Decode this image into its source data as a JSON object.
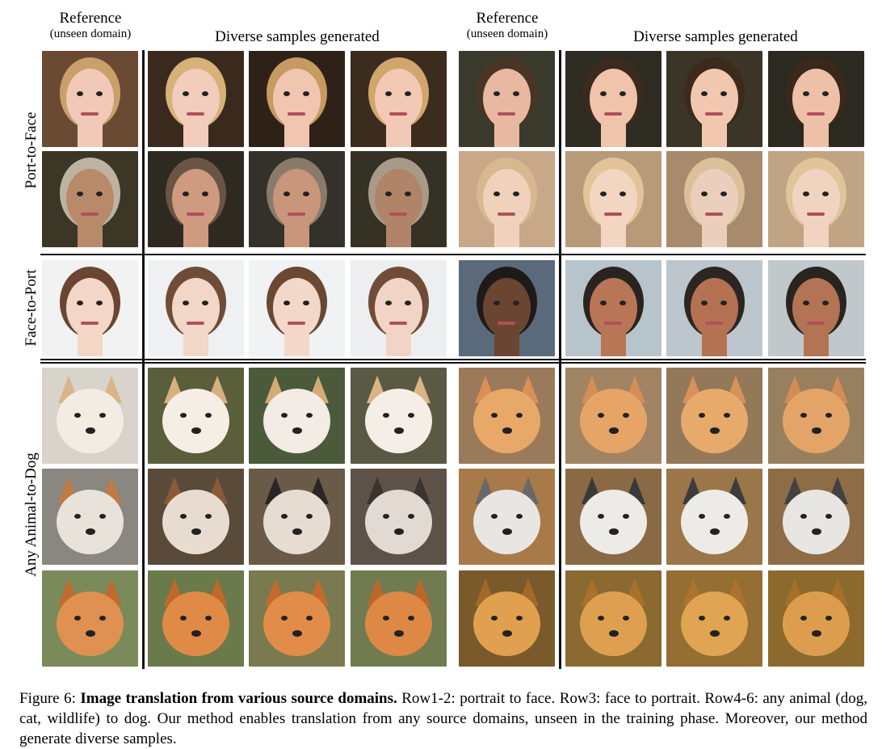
{
  "headers": [
    {
      "title": "Reference",
      "subtitle": "(unseen domain)"
    },
    {
      "title": "Diverse samples generated"
    },
    {
      "title": "Reference",
      "subtitle": "(unseen domain)"
    },
    {
      "title": "Diverse samples generated"
    }
  ],
  "row_groups": [
    "Port-to-Face",
    "Face-to-Port",
    "Any Animal-to-Dog"
  ],
  "rows": [
    {
      "kind": "face",
      "tones": [
        {
          "bg": "#6a4a32",
          "skin": "#f0c9b8",
          "hair": "#c9a06a"
        },
        {
          "bg": "#3a2a1e",
          "skin": "#f2cdbb",
          "hair": "#d6b27a"
        },
        {
          "bg": "#2e2218",
          "skin": "#f0c6b0",
          "hair": "#c69a60"
        },
        {
          "bg": "#3c2c1e",
          "skin": "#f1c9b4",
          "hair": "#d0a66c"
        },
        {
          "bg": "#3a3a2c",
          "skin": "#e8b9a0",
          "hair": "#4a3426"
        },
        {
          "bg": "#2e2c22",
          "skin": "#f0c3ab",
          "hair": "#3b2a1e"
        },
        {
          "bg": "#3a3526",
          "skin": "#f2c7b0",
          "hair": "#3c2a1c"
        },
        {
          "bg": "#2c2a20",
          "skin": "#eec0a8",
          "hair": "#3a281c"
        }
      ]
    },
    {
      "kind": "face",
      "tones": [
        {
          "bg": "#3b3626",
          "skin": "#b88a6a",
          "hair": "#bdb3a0"
        },
        {
          "bg": "#2e2a22",
          "skin": "#d09a80",
          "hair": "#6a5444"
        },
        {
          "bg": "#34302a",
          "skin": "#c8967a",
          "hair": "#8a7a6a"
        },
        {
          "bg": "#353125",
          "skin": "#b08468",
          "hair": "#a89a88"
        },
        {
          "bg": "#c8a888",
          "skin": "#f0d2bc",
          "hair": "#d8b890"
        },
        {
          "bg": "#b89a78",
          "skin": "#f3d6c2",
          "hair": "#e2c498"
        },
        {
          "bg": "#a88a6c",
          "skin": "#ead0bc",
          "hair": "#dcc09a"
        },
        {
          "bg": "#c0a484",
          "skin": "#f0d4c0",
          "hair": "#e0c49a"
        }
      ]
    },
    {
      "kind": "face",
      "tones": [
        {
          "bg": "#f2f2f2",
          "skin": "#f4d6c6",
          "hair": "#6a4632"
        },
        {
          "bg": "#eef0f2",
          "skin": "#f2d6c8",
          "hair": "#6e4c36"
        },
        {
          "bg": "#f0f2f4",
          "skin": "#f3d8ca",
          "hair": "#6a4834"
        },
        {
          "bg": "#eceef0",
          "skin": "#f1d4c6",
          "hair": "#704c38"
        },
        {
          "bg": "#5a6a7a",
          "skin": "#6a4632",
          "hair": "#1e1a18"
        },
        {
          "bg": "#b8c4cc",
          "skin": "#b87656",
          "hair": "#2a2420"
        },
        {
          "bg": "#bcc6cc",
          "skin": "#b47252",
          "hair": "#2c2622"
        },
        {
          "bg": "#c0c8cc",
          "skin": "#b27454",
          "hair": "#2a2420"
        }
      ]
    },
    {
      "kind": "animal",
      "tones": [
        {
          "bg": "#d8d4cc",
          "fur": "#f2ece2",
          "ear": "#d9b48a"
        },
        {
          "bg": "#5a5e3a",
          "fur": "#f4eee4",
          "ear": "#d8b080"
        },
        {
          "bg": "#4a5a3a",
          "fur": "#f2ece4",
          "ear": "#d4aa78"
        },
        {
          "bg": "#5a5a44",
          "fur": "#f4eee6",
          "ear": "#dab486"
        },
        {
          "bg": "#9a7a5a",
          "fur": "#e8a868",
          "ear": "#d89058"
        },
        {
          "bg": "#a08464",
          "fur": "#e6a466",
          "ear": "#d48e56"
        },
        {
          "bg": "#94785a",
          "fur": "#e8aa6a",
          "ear": "#d6925a"
        },
        {
          "bg": "#98805e",
          "fur": "#e4a468",
          "ear": "#d28c56"
        }
      ]
    },
    {
      "kind": "animal",
      "tones": [
        {
          "bg": "#8a8680",
          "fur": "#e8e2da",
          "ear": "#c07a42"
        },
        {
          "bg": "#5a4a3a",
          "fur": "#e8dcd0",
          "ear": "#8a5a38"
        },
        {
          "bg": "#6a5a48",
          "fur": "#e6dcd2",
          "ear": "#2a2624"
        },
        {
          "bg": "#5e5248",
          "fur": "#e2dad2",
          "ear": "#3a3430"
        },
        {
          "bg": "#a87a4a",
          "fur": "#e8e6e2",
          "ear": "#6a6866"
        },
        {
          "bg": "#8a6a44",
          "fur": "#ecebe8",
          "ear": "#3a3a3a"
        },
        {
          "bg": "#9a7648",
          "fur": "#ecebe8",
          "ear": "#3c3c3c"
        },
        {
          "bg": "#8e6c46",
          "fur": "#e8e6e2",
          "ear": "#444240"
        }
      ]
    },
    {
      "kind": "animal",
      "tones": [
        {
          "bg": "#7a8a5a",
          "fur": "#e09050",
          "ear": "#c06a30"
        },
        {
          "bg": "#6a7a4a",
          "fur": "#e08a48",
          "ear": "#c0682c"
        },
        {
          "bg": "#7a7a50",
          "fur": "#e28c4a",
          "ear": "#c46a2e"
        },
        {
          "bg": "#707c50",
          "fur": "#de8846",
          "ear": "#be662a"
        },
        {
          "bg": "#7a5a2a",
          "fur": "#e0a050",
          "ear": "#a06a28"
        },
        {
          "bg": "#8a6a30",
          "fur": "#dea050",
          "ear": "#a8722c"
        },
        {
          "bg": "#946e32",
          "fur": "#e0a452",
          "ear": "#aa742e"
        },
        {
          "bg": "#8c6a2e",
          "fur": "#dc9e4e",
          "ear": "#a4702a"
        }
      ]
    }
  ],
  "caption": {
    "prefix": "Figure 6: ",
    "bold": "Image translation from various source domains.",
    "rest": " Row1-2: portrait to face. Row3: face to portrait. Row4-6: any animal (dog, cat, wildlife) to dog. Our method enables translation from any source domains, unseen in the training phase. Moreover, our method generate diverse samples."
  }
}
